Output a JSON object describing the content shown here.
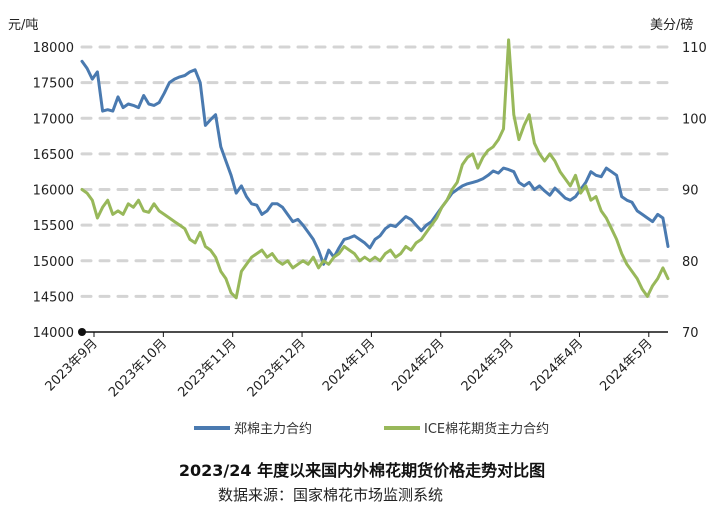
{
  "chart_data": {
    "type": "line",
    "title": "2023/24 年度以来国内外棉花期货价格走势对比图",
    "source": "数据来源：国家棉花市场监测系统",
    "y_left": {
      "unit": "元/吨",
      "min": 14000,
      "max": 18000,
      "ticks": [
        "14000",
        "14500",
        "15000",
        "15500",
        "16000",
        "16500",
        "17000",
        "17500",
        "18000"
      ]
    },
    "y_right": {
      "unit": "美分/磅",
      "min": 70,
      "max": 110,
      "ticks": [
        "70",
        "80",
        "90",
        "100",
        "110"
      ]
    },
    "x_ticks": [
      "2023年9月",
      "2023年10月",
      "2023年11月",
      "2023年12月",
      "2024年1月",
      "2024年2月",
      "2024年3月",
      "2024年4月",
      "2024年5月"
    ],
    "grid": "horizontal dashed",
    "legend_position": "bottom",
    "series": [
      {
        "name": "郑棉主力合约",
        "axis": "left",
        "color": "#4a7ab0",
        "points": [
          [
            0,
            17800
          ],
          [
            2,
            17700
          ],
          [
            4,
            17550
          ],
          [
            6,
            17650
          ],
          [
            8,
            17100
          ],
          [
            10,
            17120
          ],
          [
            12,
            17100
          ],
          [
            14,
            17300
          ],
          [
            16,
            17150
          ],
          [
            18,
            17200
          ],
          [
            20,
            17180
          ],
          [
            22,
            17150
          ],
          [
            24,
            17320
          ],
          [
            26,
            17200
          ],
          [
            28,
            17180
          ],
          [
            30,
            17220
          ],
          [
            32,
            17350
          ],
          [
            34,
            17500
          ],
          [
            36,
            17550
          ],
          [
            38,
            17580
          ],
          [
            40,
            17600
          ],
          [
            42,
            17650
          ],
          [
            44,
            17680
          ],
          [
            46,
            17500
          ],
          [
            48,
            16900
          ],
          [
            50,
            16980
          ],
          [
            52,
            17050
          ],
          [
            54,
            16600
          ],
          [
            56,
            16400
          ],
          [
            58,
            16200
          ],
          [
            60,
            15950
          ],
          [
            62,
            16050
          ],
          [
            64,
            15900
          ],
          [
            66,
            15800
          ],
          [
            68,
            15780
          ],
          [
            70,
            15650
          ],
          [
            72,
            15700
          ],
          [
            74,
            15800
          ],
          [
            76,
            15800
          ],
          [
            78,
            15750
          ],
          [
            80,
            15650
          ],
          [
            82,
            15550
          ],
          [
            84,
            15580
          ],
          [
            86,
            15500
          ],
          [
            88,
            15400
          ],
          [
            90,
            15300
          ],
          [
            92,
            15150
          ],
          [
            94,
            14950
          ],
          [
            96,
            15150
          ],
          [
            98,
            15050
          ],
          [
            100,
            15180
          ],
          [
            102,
            15300
          ],
          [
            104,
            15320
          ],
          [
            106,
            15350
          ],
          [
            108,
            15300
          ],
          [
            110,
            15250
          ],
          [
            112,
            15180
          ],
          [
            114,
            15300
          ],
          [
            116,
            15350
          ],
          [
            118,
            15450
          ],
          [
            120,
            15500
          ],
          [
            122,
            15480
          ],
          [
            124,
            15550
          ],
          [
            126,
            15620
          ],
          [
            128,
            15580
          ],
          [
            130,
            15500
          ],
          [
            132,
            15420
          ],
          [
            134,
            15500
          ],
          [
            136,
            15550
          ],
          [
            138,
            15650
          ],
          [
            140,
            15750
          ],
          [
            142,
            15850
          ],
          [
            144,
            15950
          ],
          [
            146,
            16000
          ],
          [
            148,
            16050
          ],
          [
            150,
            16080
          ],
          [
            152,
            16100
          ],
          [
            154,
            16120
          ],
          [
            156,
            16150
          ],
          [
            158,
            16200
          ],
          [
            160,
            16260
          ],
          [
            162,
            16230
          ],
          [
            164,
            16300
          ],
          [
            166,
            16280
          ],
          [
            168,
            16250
          ],
          [
            170,
            16100
          ],
          [
            172,
            16050
          ],
          [
            174,
            16100
          ],
          [
            176,
            16000
          ],
          [
            178,
            16050
          ],
          [
            180,
            15980
          ],
          [
            182,
            15920
          ],
          [
            184,
            16020
          ],
          [
            186,
            15950
          ],
          [
            188,
            15880
          ],
          [
            190,
            15850
          ],
          [
            192,
            15900
          ],
          [
            194,
            16000
          ],
          [
            196,
            16100
          ],
          [
            198,
            16250
          ],
          [
            200,
            16200
          ],
          [
            202,
            16180
          ],
          [
            204,
            16300
          ],
          [
            206,
            16250
          ],
          [
            208,
            16200
          ],
          [
            210,
            15900
          ],
          [
            212,
            15850
          ],
          [
            214,
            15820
          ],
          [
            216,
            15700
          ],
          [
            218,
            15650
          ],
          [
            220,
            15600
          ],
          [
            222,
            15550
          ],
          [
            224,
            15650
          ],
          [
            226,
            15600
          ],
          [
            228,
            15200
          ]
        ]
      },
      {
        "name": "ICE棉花期货主力合约",
        "axis": "right",
        "color": "#98b85a",
        "points": [
          [
            0,
            90.0
          ],
          [
            2,
            89.5
          ],
          [
            4,
            88.5
          ],
          [
            6,
            86.0
          ],
          [
            8,
            87.5
          ],
          [
            10,
            88.5
          ],
          [
            12,
            86.5
          ],
          [
            14,
            87.0
          ],
          [
            16,
            86.5
          ],
          [
            18,
            88.0
          ],
          [
            20,
            87.5
          ],
          [
            22,
            88.5
          ],
          [
            24,
            87.0
          ],
          [
            26,
            86.8
          ],
          [
            28,
            88.0
          ],
          [
            30,
            87.0
          ],
          [
            32,
            86.5
          ],
          [
            34,
            86.0
          ],
          [
            36,
            85.5
          ],
          [
            38,
            85.0
          ],
          [
            40,
            84.5
          ],
          [
            42,
            83.0
          ],
          [
            44,
            82.5
          ],
          [
            46,
            84.0
          ],
          [
            48,
            82.0
          ],
          [
            50,
            81.5
          ],
          [
            52,
            80.5
          ],
          [
            54,
            78.5
          ],
          [
            56,
            77.5
          ],
          [
            58,
            75.5
          ],
          [
            60,
            74.8
          ],
          [
            62,
            78.5
          ],
          [
            64,
            79.5
          ],
          [
            66,
            80.5
          ],
          [
            68,
            81.0
          ],
          [
            70,
            81.5
          ],
          [
            72,
            80.5
          ],
          [
            74,
            81.0
          ],
          [
            76,
            80.0
          ],
          [
            78,
            79.5
          ],
          [
            80,
            80.0
          ],
          [
            82,
            79.0
          ],
          [
            84,
            79.5
          ],
          [
            86,
            80.0
          ],
          [
            88,
            79.5
          ],
          [
            90,
            80.5
          ],
          [
            92,
            79.0
          ],
          [
            94,
            80.0
          ],
          [
            96,
            79.5
          ],
          [
            98,
            80.5
          ],
          [
            100,
            81.0
          ],
          [
            102,
            82.0
          ],
          [
            104,
            81.5
          ],
          [
            106,
            81.0
          ],
          [
            108,
            80.0
          ],
          [
            110,
            80.5
          ],
          [
            112,
            80.0
          ],
          [
            114,
            80.5
          ],
          [
            116,
            80.0
          ],
          [
            118,
            81.0
          ],
          [
            120,
            81.5
          ],
          [
            122,
            80.5
          ],
          [
            124,
            81.0
          ],
          [
            126,
            82.0
          ],
          [
            128,
            81.5
          ],
          [
            130,
            82.5
          ],
          [
            132,
            83.0
          ],
          [
            134,
            84.0
          ],
          [
            136,
            85.0
          ],
          [
            138,
            86.0
          ],
          [
            140,
            87.5
          ],
          [
            142,
            88.5
          ],
          [
            144,
            90.0
          ],
          [
            146,
            91.0
          ],
          [
            148,
            93.5
          ],
          [
            150,
            94.5
          ],
          [
            152,
            95.0
          ],
          [
            154,
            93.0
          ],
          [
            156,
            94.5
          ],
          [
            158,
            95.5
          ],
          [
            160,
            96.0
          ],
          [
            162,
            97.0
          ],
          [
            164,
            98.5
          ],
          [
            166,
            111.0
          ],
          [
            168,
            100.5
          ],
          [
            170,
            97.0
          ],
          [
            172,
            99.0
          ],
          [
            174,
            100.5
          ],
          [
            176,
            96.5
          ],
          [
            178,
            95.0
          ],
          [
            180,
            94.0
          ],
          [
            182,
            95.0
          ],
          [
            184,
            94.0
          ],
          [
            186,
            92.5
          ],
          [
            188,
            91.5
          ],
          [
            190,
            90.5
          ],
          [
            192,
            92.0
          ],
          [
            194,
            89.5
          ],
          [
            196,
            90.5
          ],
          [
            198,
            88.5
          ],
          [
            200,
            89.0
          ],
          [
            202,
            87.0
          ],
          [
            204,
            86.0
          ],
          [
            206,
            84.5
          ],
          [
            208,
            83.0
          ],
          [
            210,
            81.0
          ],
          [
            212,
            79.5
          ],
          [
            214,
            78.5
          ],
          [
            216,
            77.5
          ],
          [
            218,
            76.0
          ],
          [
            220,
            75.0
          ],
          [
            222,
            76.5
          ],
          [
            224,
            77.5
          ],
          [
            226,
            79.0
          ],
          [
            228,
            77.5
          ]
        ]
      }
    ]
  }
}
